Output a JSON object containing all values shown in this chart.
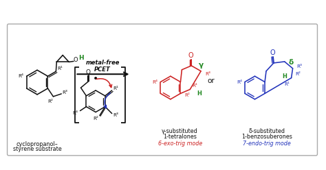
{
  "arrow_label_line1": "metal-free",
  "arrow_label_line2": "PCET",
  "substrate_label_line1": "cyclopropanol–",
  "substrate_label_line2": "styrene substrate",
  "product1_label_line1": "γ-substituted",
  "product1_label_line2": "1-tetralones",
  "product1_mode": "6-exo-trig mode",
  "product2_label_line1": "δ-substituted",
  "product2_label_line2": "1-benzosuberones",
  "product2_mode": "7-endo-trig mode",
  "red_color": "#cc2222",
  "blue_color": "#2233bb",
  "green_color": "#228822",
  "black_color": "#111111"
}
